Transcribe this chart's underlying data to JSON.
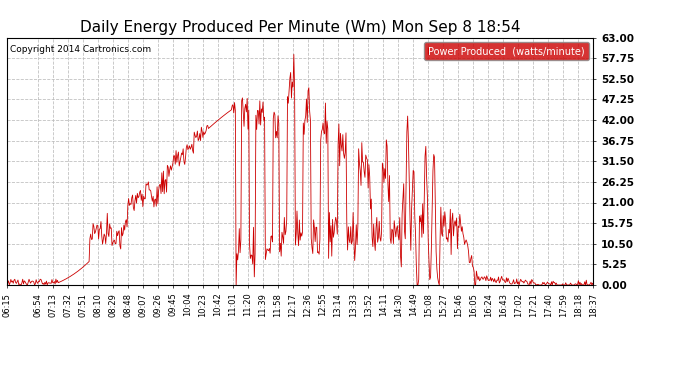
{
  "title": "Daily Energy Produced Per Minute (Wm) Mon Sep 8 18:54",
  "copyright": "Copyright 2014 Cartronics.com",
  "legend_label": "Power Produced  (watts/minute)",
  "legend_bg": "#cc0000",
  "legend_fg": "#ffffff",
  "line_color": "#cc0000",
  "bg_color": "#ffffff",
  "grid_color": "#bbbbbb",
  "title_fontsize": 11,
  "ylim": [
    0,
    63.0
  ],
  "yticks": [
    0.0,
    5.25,
    10.5,
    15.75,
    21.0,
    26.25,
    31.5,
    36.75,
    42.0,
    47.25,
    52.5,
    57.75,
    63.0
  ],
  "xtick_labels": [
    "06:15",
    "06:54",
    "07:13",
    "07:32",
    "07:51",
    "08:10",
    "08:29",
    "08:48",
    "09:07",
    "09:26",
    "09:45",
    "10:04",
    "10:23",
    "10:42",
    "11:01",
    "11:20",
    "11:39",
    "11:58",
    "12:17",
    "12:36",
    "12:55",
    "13:14",
    "13:33",
    "13:52",
    "14:11",
    "14:30",
    "14:49",
    "15:08",
    "15:27",
    "15:46",
    "16:05",
    "16:24",
    "16:43",
    "17:02",
    "17:21",
    "17:40",
    "17:59",
    "18:18",
    "18:37"
  ],
  "start_time": "06:15",
  "end_time": "18:37"
}
